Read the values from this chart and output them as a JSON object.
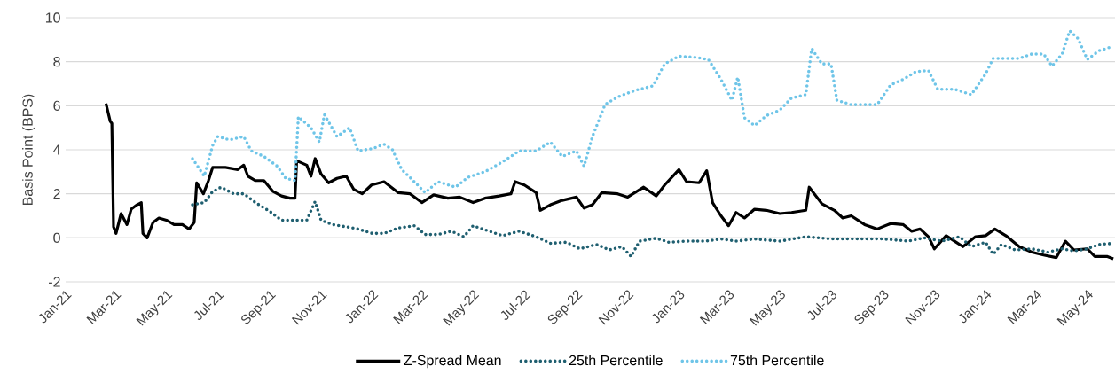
{
  "chart_data": {
    "type": "line",
    "ylabel": "Basis Point (BPS)",
    "xlim": [
      "2021-01-01",
      "2024-06-03"
    ],
    "ylim": [
      -2,
      10
    ],
    "yticks": [
      -2,
      0,
      2,
      4,
      6,
      8,
      10
    ],
    "xticks": [
      {
        "value": "2021-01-01",
        "label": "Jan-21"
      },
      {
        "value": "2021-03-01",
        "label": "Mar-21"
      },
      {
        "value": "2021-05-01",
        "label": "May-21"
      },
      {
        "value": "2021-07-01",
        "label": "Jul-21"
      },
      {
        "value": "2021-09-01",
        "label": "Sep-21"
      },
      {
        "value": "2021-11-01",
        "label": "Nov-21"
      },
      {
        "value": "2022-01-01",
        "label": "Jan-22"
      },
      {
        "value": "2022-03-01",
        "label": "Mar-22"
      },
      {
        "value": "2022-05-01",
        "label": "May-22"
      },
      {
        "value": "2022-07-01",
        "label": "Jul-22"
      },
      {
        "value": "2022-09-01",
        "label": "Sep-22"
      },
      {
        "value": "2022-11-01",
        "label": "Nov-22"
      },
      {
        "value": "2023-01-01",
        "label": "Jan-23"
      },
      {
        "value": "2023-03-01",
        "label": "Mar-23"
      },
      {
        "value": "2023-05-01",
        "label": "May-23"
      },
      {
        "value": "2023-07-01",
        "label": "Jul-23"
      },
      {
        "value": "2023-09-01",
        "label": "Sep-23"
      },
      {
        "value": "2023-11-01",
        "label": "Nov-23"
      },
      {
        "value": "2024-01-01",
        "label": "Jan-24"
      },
      {
        "value": "2024-03-01",
        "label": "Mar-24"
      },
      {
        "value": "2024-05-01",
        "label": "May-24"
      }
    ],
    "grid": "y",
    "legend": "bottom",
    "marker": "none",
    "series": [
      {
        "name": "Z-Spread Mean",
        "color": "#000000",
        "line_style": "solid",
        "x": [
          "2021-02-18",
          "2021-02-23",
          "2021-02-25",
          "2021-02-27",
          "2021-03-02",
          "2021-03-08",
          "2021-03-15",
          "2021-03-20",
          "2021-03-27",
          "2021-04-01",
          "2021-04-03",
          "2021-04-08",
          "2021-04-15",
          "2021-04-22",
          "2021-05-01",
          "2021-05-10",
          "2021-05-20",
          "2021-05-28",
          "2021-06-03",
          "2021-06-06",
          "2021-06-14",
          "2021-06-20",
          "2021-06-25",
          "2021-07-10",
          "2021-07-25",
          "2021-08-01",
          "2021-08-06",
          "2021-08-15",
          "2021-08-25",
          "2021-09-05",
          "2021-09-15",
          "2021-09-25",
          "2021-10-01",
          "2021-10-03",
          "2021-10-15",
          "2021-10-20",
          "2021-10-25",
          "2021-11-01",
          "2021-11-10",
          "2021-11-20",
          "2021-12-01",
          "2021-12-10",
          "2021-12-20",
          "2021-12-31",
          "2022-01-15",
          "2022-02-01",
          "2022-02-15",
          "2022-03-01",
          "2022-03-15",
          "2022-04-01",
          "2022-04-15",
          "2022-05-01",
          "2022-05-15",
          "2022-06-01",
          "2022-06-15",
          "2022-06-20",
          "2022-07-01",
          "2022-07-15",
          "2022-07-20",
          "2022-08-01",
          "2022-08-15",
          "2022-09-01",
          "2022-09-10",
          "2022-09-20",
          "2022-10-01",
          "2022-10-20",
          "2022-11-01",
          "2022-11-20",
          "2022-12-05",
          "2022-12-15",
          "2023-01-01",
          "2023-01-10",
          "2023-01-25",
          "2023-02-03",
          "2023-02-10",
          "2023-02-20",
          "2023-03-01",
          "2023-03-10",
          "2023-03-20",
          "2023-04-01",
          "2023-04-15",
          "2023-05-01",
          "2023-05-15",
          "2023-06-01",
          "2023-06-05",
          "2023-06-12",
          "2023-06-20",
          "2023-07-05",
          "2023-07-15",
          "2023-07-25",
          "2023-08-10",
          "2023-08-25",
          "2023-09-10",
          "2023-09-25",
          "2023-10-05",
          "2023-10-15",
          "2023-10-25",
          "2023-11-01",
          "2023-11-15",
          "2023-11-25",
          "2023-12-05",
          "2023-12-20",
          "2024-01-01",
          "2024-01-12",
          "2024-01-25",
          "2024-02-10",
          "2024-02-25",
          "2024-03-10",
          "2024-03-25",
          "2024-04-05",
          "2024-04-15",
          "2024-05-01",
          "2024-05-10",
          "2024-05-25",
          "2024-06-01"
        ],
        "values": [
          6.1,
          5.3,
          5.2,
          0.5,
          0.2,
          1.1,
          0.6,
          1.3,
          1.5,
          1.6,
          0.2,
          0.0,
          0.7,
          0.9,
          0.8,
          0.6,
          0.6,
          0.4,
          0.7,
          2.5,
          2.0,
          2.6,
          3.2,
          3.2,
          3.1,
          3.3,
          2.8,
          2.6,
          2.6,
          2.1,
          1.9,
          1.8,
          1.8,
          3.5,
          3.3,
          2.8,
          3.6,
          2.9,
          2.5,
          2.7,
          2.8,
          2.2,
          2.0,
          2.4,
          2.55,
          2.05,
          2.0,
          1.6,
          1.95,
          1.8,
          1.85,
          1.6,
          1.8,
          1.9,
          2.0,
          2.55,
          2.4,
          2.05,
          1.25,
          1.5,
          1.7,
          1.85,
          1.35,
          1.5,
          2.05,
          2.0,
          1.85,
          2.3,
          1.9,
          2.4,
          3.1,
          2.55,
          2.5,
          3.05,
          1.6,
          1.0,
          0.55,
          1.15,
          0.9,
          1.3,
          1.25,
          1.1,
          1.15,
          1.25,
          2.3,
          1.95,
          1.55,
          1.25,
          0.9,
          1.0,
          0.6,
          0.4,
          0.65,
          0.6,
          0.3,
          0.4,
          0.05,
          -0.5,
          0.1,
          -0.15,
          -0.4,
          0.05,
          0.1,
          0.4,
          0.1,
          -0.4,
          -0.65,
          -0.78,
          -0.9,
          -0.15,
          -0.55,
          -0.5,
          -0.85,
          -0.85,
          -0.95
        ]
      },
      {
        "name": "25th Percentile",
        "color": "#1f5f70",
        "line_style": "dotted",
        "x": [
          "2021-06-01",
          "2021-06-15",
          "2021-06-25",
          "2021-07-05",
          "2021-07-20",
          "2021-08-01",
          "2021-08-15",
          "2021-09-01",
          "2021-09-15",
          "2021-10-01",
          "2021-10-15",
          "2021-10-25",
          "2021-11-01",
          "2021-11-15",
          "2021-12-01",
          "2021-12-15",
          "2022-01-01",
          "2022-01-15",
          "2022-02-01",
          "2022-02-20",
          "2022-03-05",
          "2022-03-20",
          "2022-04-05",
          "2022-04-20",
          "2022-05-01",
          "2022-05-20",
          "2022-06-05",
          "2022-06-25",
          "2022-07-15",
          "2022-08-01",
          "2022-08-20",
          "2022-09-05",
          "2022-09-25",
          "2022-10-10",
          "2022-10-25",
          "2022-11-05",
          "2022-11-15",
          "2022-12-05",
          "2022-12-20",
          "2023-01-10",
          "2023-02-01",
          "2023-02-20",
          "2023-03-10",
          "2023-04-01",
          "2023-05-01",
          "2023-06-01",
          "2023-07-01",
          "2023-08-01",
          "2023-09-01",
          "2023-10-01",
          "2023-10-20",
          "2023-11-10",
          "2023-12-01",
          "2023-12-15",
          "2024-01-01",
          "2024-01-10",
          "2024-01-20",
          "2024-02-05",
          "2024-02-25",
          "2024-03-15",
          "2024-04-01",
          "2024-04-15",
          "2024-05-01",
          "2024-05-15",
          "2024-06-01"
        ],
        "values": [
          1.5,
          1.6,
          2.1,
          2.3,
          2.0,
          2.0,
          1.6,
          1.2,
          0.8,
          0.8,
          0.8,
          1.65,
          0.8,
          0.6,
          0.5,
          0.4,
          0.2,
          0.2,
          0.45,
          0.55,
          0.15,
          0.15,
          0.3,
          0.05,
          0.55,
          0.3,
          0.1,
          0.3,
          0.05,
          -0.25,
          -0.2,
          -0.5,
          -0.3,
          -0.55,
          -0.4,
          -0.85,
          -0.15,
          -0.02,
          -0.2,
          -0.15,
          -0.15,
          -0.05,
          -0.15,
          -0.05,
          -0.15,
          0.05,
          -0.05,
          -0.05,
          -0.05,
          -0.15,
          0.0,
          -0.15,
          0.05,
          -0.4,
          -0.2,
          -0.75,
          -0.3,
          -0.55,
          -0.5,
          -0.65,
          -0.5,
          -0.6,
          -0.5,
          -0.3,
          -0.25
        ]
      },
      {
        "name": "75th Percentile",
        "color": "#6fc5e8",
        "line_style": "dotted",
        "x": [
          "2021-06-01",
          "2021-06-15",
          "2021-06-25",
          "2021-07-01",
          "2021-07-15",
          "2021-08-01",
          "2021-08-10",
          "2021-08-25",
          "2021-09-10",
          "2021-09-20",
          "2021-10-01",
          "2021-10-05",
          "2021-10-20",
          "2021-10-30",
          "2021-11-05",
          "2021-11-20",
          "2021-12-05",
          "2021-12-15",
          "2022-01-01",
          "2022-01-15",
          "2022-01-25",
          "2022-02-05",
          "2022-02-20",
          "2022-03-05",
          "2022-03-20",
          "2022-04-10",
          "2022-04-25",
          "2022-05-15",
          "2022-06-05",
          "2022-06-25",
          "2022-07-15",
          "2022-08-01",
          "2022-08-15",
          "2022-09-01",
          "2022-09-10",
          "2022-09-20",
          "2022-10-05",
          "2022-10-20",
          "2022-11-10",
          "2022-12-01",
          "2022-12-15",
          "2023-01-01",
          "2023-01-20",
          "2023-02-05",
          "2023-02-20",
          "2023-03-05",
          "2023-03-12",
          "2023-03-20",
          "2023-04-01",
          "2023-04-15",
          "2023-05-01",
          "2023-05-15",
          "2023-06-01",
          "2023-06-08",
          "2023-06-20",
          "2023-07-01",
          "2023-07-08",
          "2023-07-25",
          "2023-08-10",
          "2023-08-25",
          "2023-09-10",
          "2023-09-25",
          "2023-10-10",
          "2023-10-25",
          "2023-11-05",
          "2023-11-25",
          "2023-12-15",
          "2024-01-01",
          "2024-01-10",
          "2024-01-25",
          "2024-02-10",
          "2024-02-25",
          "2024-03-10",
          "2024-03-20",
          "2024-04-01",
          "2024-04-10",
          "2024-04-20",
          "2024-05-01",
          "2024-05-15",
          "2024-06-01"
        ],
        "values": [
          3.6,
          2.8,
          4.2,
          4.6,
          4.45,
          4.6,
          3.95,
          3.7,
          3.25,
          2.7,
          2.6,
          5.5,
          5.0,
          4.35,
          5.6,
          4.6,
          5.0,
          3.95,
          4.05,
          4.25,
          4.0,
          3.1,
          2.55,
          2.05,
          2.55,
          2.3,
          2.75,
          3.0,
          3.45,
          3.95,
          3.95,
          4.35,
          3.7,
          3.95,
          3.25,
          4.6,
          6.05,
          6.4,
          6.7,
          6.9,
          7.9,
          8.25,
          8.2,
          8.1,
          7.2,
          6.25,
          7.3,
          5.45,
          5.1,
          5.55,
          5.8,
          6.35,
          6.5,
          8.6,
          7.9,
          7.9,
          6.25,
          6.05,
          6.05,
          6.05,
          6.95,
          7.2,
          7.55,
          7.6,
          6.75,
          6.75,
          6.5,
          7.45,
          8.15,
          8.15,
          8.15,
          8.35,
          8.35,
          7.8,
          8.35,
          9.4,
          9.05,
          8.1,
          8.5,
          8.7
        ]
      }
    ]
  }
}
